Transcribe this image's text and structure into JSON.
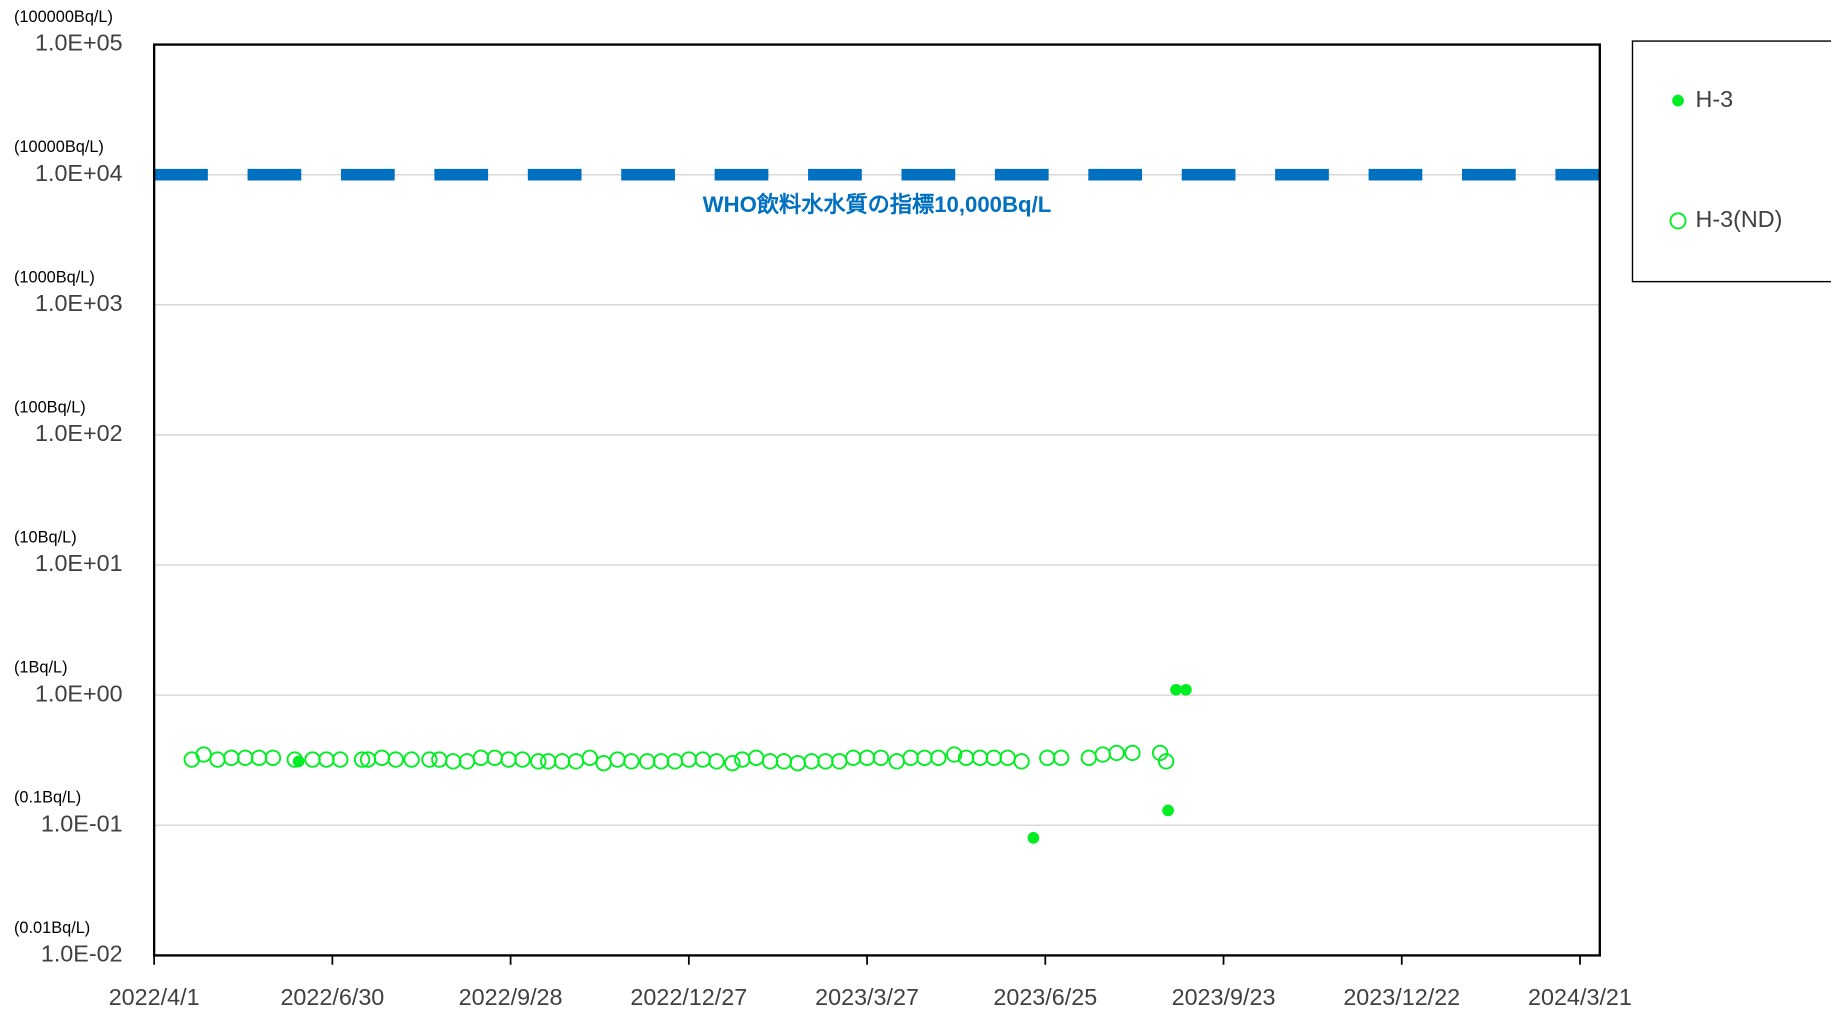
{
  "chart_data": {
    "type": "scatter",
    "log_y": true,
    "grid": true,
    "ylim": [
      0.01,
      100000
    ],
    "yticks": [
      {
        "value": 0.01,
        "label": "1.0E-02"
      },
      {
        "value": 0.1,
        "label": "1.0E-01"
      },
      {
        "value": 1,
        "label": "1.0E+00"
      },
      {
        "value": 10,
        "label": "1.0E+01"
      },
      {
        "value": 100,
        "label": "1.0E+02"
      },
      {
        "value": 1000,
        "label": "1.0E+03"
      },
      {
        "value": 10000,
        "label": "1.0E+04"
      },
      {
        "value": 100000,
        "label": "1.0E+05"
      }
    ],
    "ytick_units": [
      "(0.01Bq/L)",
      "(0.1Bq/L)",
      "(1Bq/L)",
      "(10Bq/L)",
      "(100Bq/L)",
      "(1000Bq/L)",
      "(10000Bq/L)",
      "(100000Bq/L)"
    ],
    "xlim": [
      "2022/4/1",
      "2024/3/31"
    ],
    "xticks": [
      "2022/4/1",
      "2022/6/30",
      "2022/9/28",
      "2022/12/27",
      "2023/3/27",
      "2023/6/25",
      "2023/9/23",
      "2023/12/22",
      "2024/3/21"
    ],
    "reference_line": {
      "value": 10000,
      "color": "#0070c0",
      "label": "WHO飲料水水質の指標10,000Bq/L"
    },
    "legend": "right",
    "series": [
      {
        "name": "H-3",
        "color": "#00ee22",
        "filled": true,
        "x": [
          "2022/6/13",
          "2023/6/19",
          "2023/8/26",
          "2023/8/30",
          "2023/9/4"
        ],
        "values": [
          0.31,
          0.08,
          0.13,
          1.1,
          1.1
        ]
      },
      {
        "name": "H-3(ND)",
        "color": "#00ee22",
        "filled": false,
        "x": [
          "2022/4/20",
          "2022/4/26",
          "2022/5/3",
          "2022/5/10",
          "2022/5/17",
          "2022/5/24",
          "2022/5/31",
          "2022/6/11",
          "2022/6/20",
          "2022/6/27",
          "2022/7/4",
          "2022/7/15",
          "2022/7/18",
          "2022/7/25",
          "2022/8/1",
          "2022/8/9",
          "2022/8/18",
          "2022/8/23",
          "2022/8/30",
          "2022/9/6",
          "2022/9/13",
          "2022/9/20",
          "2022/9/27",
          "2022/10/4",
          "2022/10/12",
          "2022/10/17",
          "2022/10/24",
          "2022/10/31",
          "2022/11/7",
          "2022/11/14",
          "2022/11/21",
          "2022/11/28",
          "2022/12/6",
          "2022/12/13",
          "2022/12/20",
          "2022/12/27",
          "2023/1/3",
          "2023/1/10",
          "2023/1/18",
          "2023/1/23",
          "2023/1/30",
          "2023/2/6",
          "2023/2/13",
          "2023/2/20",
          "2023/2/27",
          "2023/3/6",
          "2023/3/13",
          "2023/3/20",
          "2023/3/27",
          "2023/4/3",
          "2023/4/11",
          "2023/4/18",
          "2023/4/25",
          "2023/5/2",
          "2023/5/10",
          "2023/5/16",
          "2023/5/23",
          "2023/5/30",
          "2023/6/6",
          "2023/6/13",
          "2023/6/26",
          "2023/7/3",
          "2023/7/17",
          "2023/7/24",
          "2023/7/31",
          "2023/8/8",
          "2023/8/22",
          "2023/8/25"
        ],
        "values": [
          0.32,
          0.35,
          0.32,
          0.33,
          0.33,
          0.33,
          0.33,
          0.32,
          0.32,
          0.32,
          0.32,
          0.32,
          0.32,
          0.33,
          0.32,
          0.32,
          0.32,
          0.32,
          0.31,
          0.31,
          0.33,
          0.33,
          0.32,
          0.32,
          0.31,
          0.31,
          0.31,
          0.31,
          0.33,
          0.3,
          0.32,
          0.31,
          0.31,
          0.31,
          0.31,
          0.32,
          0.32,
          0.31,
          0.3,
          0.32,
          0.33,
          0.31,
          0.31,
          0.3,
          0.31,
          0.31,
          0.31,
          0.33,
          0.33,
          0.33,
          0.31,
          0.33,
          0.33,
          0.33,
          0.35,
          0.33,
          0.33,
          0.33,
          0.33,
          0.31,
          0.33,
          0.33,
          0.33,
          0.35,
          0.36,
          0.36,
          0.36,
          0.31
        ]
      }
    ]
  }
}
